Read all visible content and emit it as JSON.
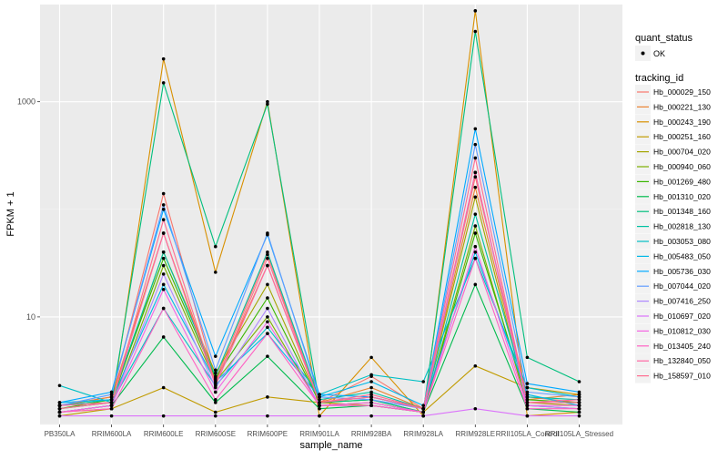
{
  "chart_data": {
    "type": "line",
    "title": "",
    "xlabel": "sample_name",
    "ylabel": "FPKM + 1",
    "y_scale": "log10",
    "ylim": [
      1,
      8000
    ],
    "y_ticks": [
      {
        "v": 10,
        "label": "10"
      },
      {
        "v": 1000,
        "label": "1000"
      }
    ],
    "grid": true,
    "legend_position": "right",
    "categories": [
      "PB350LA",
      "RRIM600LA",
      "RRIM600LE",
      "RRIM600SE",
      "RRIM600PE",
      "RRIM901LA",
      "RRIM928BA",
      "RRIM928LA",
      "RRIM928LE",
      "RRII105LA_Control",
      "RRII105LA_Stressed"
    ],
    "point_legend": {
      "title": "quant_status",
      "label": "OK"
    },
    "series_legend_title": "tracking_id",
    "series": [
      {
        "name": "Hb_000029_150",
        "color": "#F8766D",
        "values": [
          1.5,
          1.8,
          140,
          2.6,
          38,
          1.6,
          2.8,
          1.4,
          200,
          1.8,
          1.6
        ]
      },
      {
        "name": "Hb_000221_130",
        "color": "#EA8331",
        "values": [
          1.5,
          1.8,
          60,
          2.5,
          30,
          1.6,
          2.2,
          1.4,
          160,
          1.7,
          1.9
        ]
      },
      {
        "name": "Hb_000243_190",
        "color": "#D89000",
        "values": [
          1.3,
          1.4,
          2500,
          26,
          1000,
          1.2,
          4.2,
          1.2,
          7000,
          1.2,
          1.3
        ]
      },
      {
        "name": "Hb_000251_160",
        "color": "#C09B00",
        "values": [
          1.2,
          1.4,
          2.2,
          1.3,
          1.8,
          1.6,
          1.5,
          1.3,
          3.5,
          2.2,
          1.9
        ]
      },
      {
        "name": "Hb_000704_020",
        "color": "#A3A500",
        "values": [
          1.5,
          1.6,
          40,
          3.0,
          20,
          1.6,
          1.8,
          1.4,
          130,
          1.6,
          1.5
        ]
      },
      {
        "name": "Hb_000940_060",
        "color": "#7CAE00",
        "values": [
          1.3,
          1.5,
          30,
          2.5,
          10,
          1.5,
          1.6,
          1.3,
          70,
          1.5,
          1.4
        ]
      },
      {
        "name": "Hb_001269_480",
        "color": "#39B600",
        "values": [
          1.4,
          1.7,
          35,
          2.7,
          15,
          1.6,
          1.7,
          1.3,
          60,
          1.7,
          1.6
        ]
      },
      {
        "name": "Hb_001310_020",
        "color": "#00BB4E",
        "values": [
          1.3,
          1.5,
          6.5,
          1.6,
          4.3,
          1.4,
          1.5,
          1.3,
          20,
          1.4,
          1.3
        ]
      },
      {
        "name": "Hb_001348_160",
        "color": "#00BF7D",
        "values": [
          1.4,
          1.6,
          1500,
          45,
          950,
          1.6,
          1.7,
          1.3,
          4500,
          4.2,
          2.5
        ]
      },
      {
        "name": "Hb_002818_130",
        "color": "#00C1A3",
        "values": [
          1.5,
          1.7,
          40,
          2.8,
          40,
          1.7,
          2.0,
          1.4,
          90,
          1.8,
          1.7
        ]
      },
      {
        "name": "Hb_003053_080",
        "color": "#00BFC4",
        "values": [
          2.3,
          1.6,
          12,
          2.3,
          8,
          1.9,
          2.9,
          2.5,
          35,
          2.2,
          1.8
        ]
      },
      {
        "name": "Hb_005483_050",
        "color": "#00B8E7",
        "values": [
          1.6,
          1.7,
          20,
          2.5,
          7,
          1.8,
          2.5,
          1.5,
          40,
          1.9,
          1.5
        ]
      },
      {
        "name": "Hb_005736_030",
        "color": "#00A9FF",
        "values": [
          1.6,
          2.0,
          100,
          4.3,
          58,
          1.9,
          1.8,
          1.4,
          560,
          2.4,
          2.0
        ]
      },
      {
        "name": "Hb_007044_020",
        "color": "#619CFF",
        "values": [
          1.5,
          1.9,
          110,
          3.2,
          60,
          1.8,
          1.7,
          1.4,
          400,
          2.0,
          1.8
        ]
      },
      {
        "name": "Hb_007416_250",
        "color": "#AE87FF",
        "values": [
          1.3,
          1.5,
          25,
          2.2,
          12,
          1.5,
          1.5,
          1.3,
          220,
          1.5,
          1.4
        ]
      },
      {
        "name": "Hb_010697_020",
        "color": "#DB72FB",
        "values": [
          1.2,
          1.2,
          1.2,
          1.2,
          1.2,
          1.2,
          1.2,
          1.2,
          1.4,
          1.2,
          1.2
        ]
      },
      {
        "name": "Hb_010812_030",
        "color": "#F564E3",
        "values": [
          1.3,
          1.5,
          18,
          2.0,
          9,
          1.5,
          1.6,
          1.3,
          45,
          1.5,
          1.5
        ]
      },
      {
        "name": "Hb_013405_240",
        "color": "#FF61C3",
        "values": [
          1.3,
          1.4,
          12,
          1.7,
          7,
          1.5,
          1.5,
          1.3,
          35,
          1.4,
          1.4
        ]
      },
      {
        "name": "Hb_132840_050",
        "color": "#FF67A4",
        "values": [
          1.5,
          1.6,
          60,
          2.3,
          30,
          1.6,
          1.8,
          1.4,
          220,
          1.6,
          1.7
        ]
      },
      {
        "name": "Hb_158597_010",
        "color": "#FF6C91",
        "values": [
          1.4,
          1.6,
          80,
          2.4,
          35,
          1.6,
          1.9,
          1.4,
          300,
          1.6,
          1.6
        ]
      }
    ]
  }
}
